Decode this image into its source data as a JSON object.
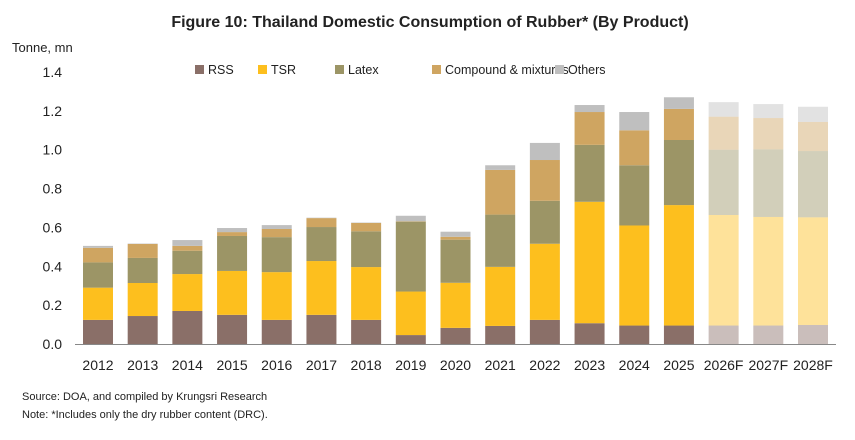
{
  "chart_data": {
    "type": "bar",
    "stacked": true,
    "title": "Figure 10: Thailand Domestic Consumption of Rubber* (By Product)",
    "ylabel": "Tonne, mn",
    "xlabel": "",
    "ylim": [
      0,
      1.4
    ],
    "yticks": [
      "0.0",
      "0.2",
      "0.4",
      "0.6",
      "0.8",
      "1.0",
      "1.2",
      "1.4"
    ],
    "grid": false,
    "legend_position": "top",
    "categories": [
      "2012",
      "2013",
      "2014",
      "2015",
      "2016",
      "2017",
      "2018",
      "2019",
      "2020",
      "2021",
      "2022",
      "2023",
      "2024",
      "2025",
      "2026F",
      "2027F",
      "2028F"
    ],
    "forecast_categories": [
      "2026F",
      "2027F",
      "2028F"
    ],
    "series": [
      {
        "name": "RSS",
        "color": "#8a6f68",
        "values": [
          0.124,
          0.144,
          0.17,
          0.15,
          0.124,
          0.15,
          0.124,
          0.046,
          0.083,
          0.093,
          0.124,
          0.107,
          0.095,
          0.095,
          0.095,
          0.095,
          0.098
        ]
      },
      {
        "name": "TSR",
        "color": "#fdbf1e",
        "values": [
          0.166,
          0.17,
          0.19,
          0.226,
          0.246,
          0.277,
          0.272,
          0.224,
          0.232,
          0.304,
          0.392,
          0.625,
          0.515,
          0.62,
          0.569,
          0.559,
          0.554
        ]
      },
      {
        "name": "Latex",
        "color": "#9c9566",
        "values": [
          0.13,
          0.129,
          0.12,
          0.18,
          0.18,
          0.175,
          0.184,
          0.36,
          0.222,
          0.269,
          0.221,
          0.293,
          0.31,
          0.335,
          0.336,
          0.348,
          0.341
        ]
      },
      {
        "name": "Compound & mixtures",
        "color": "#cfa561",
        "values": [
          0.075,
          0.072,
          0.025,
          0.02,
          0.042,
          0.046,
          0.043,
          0.002,
          0.015,
          0.23,
          0.21,
          0.169,
          0.18,
          0.16,
          0.17,
          0.161,
          0.15
        ]
      },
      {
        "name": "Others",
        "color": "#bfbfbf",
        "values": [
          0.01,
          0.002,
          0.03,
          0.021,
          0.02,
          0.002,
          0.002,
          0.028,
          0.026,
          0.024,
          0.088,
          0.036,
          0.094,
          0.06,
          0.075,
          0.072,
          0.078
        ]
      }
    ]
  },
  "footer": {
    "source": "Source: DOA, and compiled by Krungsri Research",
    "note": "Note: *Includes only the dry rubber content (DRC)."
  }
}
